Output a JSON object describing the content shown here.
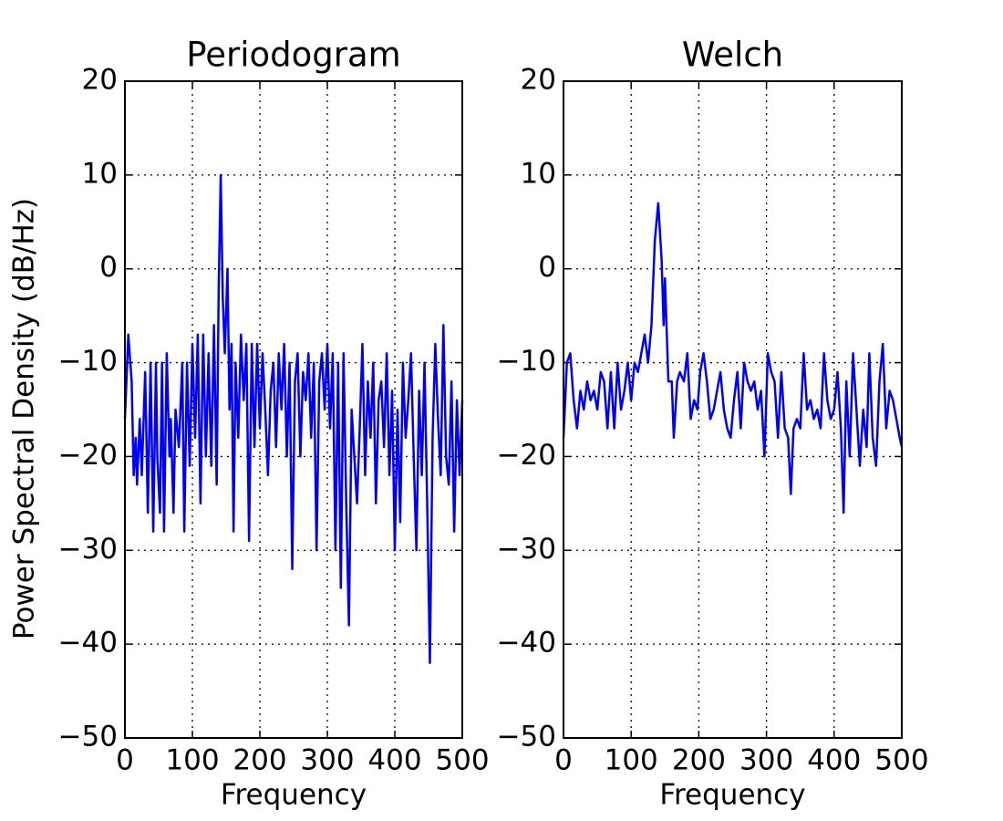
{
  "chart_data": [
    {
      "type": "line",
      "title": "Periodogram",
      "xlabel": "Frequency",
      "ylabel": "Power Spectral Density (dB/Hz)",
      "color": "#0000ff",
      "grid": true,
      "xlim": [
        0,
        500
      ],
      "ylim": [
        -50,
        20
      ],
      "xticks": [
        0,
        100,
        200,
        300,
        400,
        500
      ],
      "yticks": [
        {
          "value": -50,
          "label": "−50"
        },
        {
          "value": -40,
          "label": "−40"
        },
        {
          "value": -30,
          "label": "−30"
        },
        {
          "value": -20,
          "label": "−20"
        },
        {
          "value": -10,
          "label": "−10"
        },
        0,
        10,
        20
      ],
      "x": [
        0,
        5,
        10,
        13,
        16,
        18,
        22,
        25,
        30,
        34,
        38,
        42,
        46,
        48,
        52,
        55,
        58,
        62,
        66,
        68,
        72,
        75,
        80,
        85,
        88,
        92,
        96,
        100,
        104,
        108,
        112,
        116,
        120,
        124,
        128,
        132,
        136,
        139,
        142,
        145,
        148,
        152,
        155,
        158,
        161,
        164,
        168,
        172,
        176,
        180,
        184,
        188,
        192,
        196,
        200,
        204,
        208,
        212,
        216,
        220,
        224,
        228,
        232,
        236,
        240,
        244,
        248,
        252,
        256,
        260,
        264,
        268,
        272,
        276,
        280,
        284,
        288,
        292,
        296,
        300,
        304,
        308,
        312,
        316,
        320,
        324,
        328,
        332,
        336,
        340,
        344,
        348,
        352,
        356,
        360,
        364,
        368,
        372,
        376,
        380,
        384,
        388,
        392,
        396,
        400,
        404,
        408,
        412,
        416,
        420,
        424,
        428,
        432,
        436,
        440,
        444,
        448,
        452,
        456,
        460,
        464,
        468,
        472,
        476,
        480,
        484,
        488,
        492,
        496,
        500
      ],
      "values": [
        -16,
        -7,
        -12,
        -22,
        -18,
        -23,
        -16,
        -22,
        -11,
        -26,
        -10,
        -28,
        -10,
        -20,
        -26,
        -10,
        -28,
        -9,
        -20,
        -16,
        -26,
        -15,
        -19,
        -10,
        -28,
        -10,
        -21,
        -8,
        -18,
        -7,
        -25,
        -7,
        -20,
        -9,
        -21,
        -6,
        -23,
        -2,
        10,
        -3,
        -9,
        0,
        -15,
        -8,
        -28,
        -10,
        -18,
        -7,
        -14,
        -8,
        -29,
        -8,
        -19,
        -8,
        -17,
        -9,
        -15,
        -22,
        -13,
        -10,
        -19,
        -9,
        -15,
        -8,
        -20,
        -10,
        -32,
        -12,
        -9,
        -20,
        -11,
        -14,
        -9,
        -18,
        -10,
        -30,
        -12,
        -9,
        -15,
        -8,
        -17,
        -9,
        -30,
        -10,
        -34,
        -9,
        -25,
        -38,
        -15,
        -20,
        -25,
        -17,
        -8,
        -22,
        -12,
        -18,
        -10,
        -25,
        -14,
        -12,
        -19,
        -9,
        -22,
        -13,
        -30,
        -15,
        -27,
        -10,
        -18,
        -14,
        -9,
        -20,
        -30,
        -13,
        -22,
        -10,
        -25,
        -42,
        -18,
        -8,
        -16,
        -22,
        -6,
        -20,
        -23,
        -12,
        -28,
        -14,
        -22,
        -14
      ]
    },
    {
      "type": "line",
      "title": "Welch",
      "xlabel": "Frequency",
      "color": "#0000ff",
      "grid": true,
      "xlim": [
        0,
        500
      ],
      "ylim": [
        -50,
        20
      ],
      "xticks": [
        0,
        100,
        200,
        300,
        400,
        500
      ],
      "yticks": [
        {
          "value": -50,
          "label": "−50"
        },
        {
          "value": -40,
          "label": "−40"
        },
        {
          "value": -30,
          "label": "−30"
        },
        {
          "value": -20,
          "label": "−20"
        },
        {
          "value": -10,
          "label": "−10"
        },
        0,
        10,
        20
      ],
      "x": [
        0,
        5,
        10,
        15,
        20,
        25,
        30,
        35,
        40,
        45,
        50,
        55,
        60,
        65,
        70,
        75,
        80,
        85,
        90,
        95,
        100,
        105,
        110,
        115,
        120,
        125,
        130,
        135,
        140,
        145,
        148,
        150,
        155,
        160,
        163,
        168,
        172,
        178,
        183,
        188,
        193,
        198,
        202,
        207,
        212,
        217,
        222,
        227,
        232,
        237,
        242,
        247,
        252,
        257,
        262,
        267,
        272,
        277,
        282,
        287,
        292,
        297,
        302,
        307,
        312,
        317,
        322,
        327,
        332,
        336,
        340,
        345,
        350,
        355,
        360,
        365,
        370,
        375,
        380,
        385,
        390,
        395,
        400,
        405,
        410,
        414,
        418,
        423,
        428,
        433,
        438,
        443,
        448,
        452,
        457,
        462,
        467,
        472,
        477,
        482,
        487,
        492,
        497,
        500
      ],
      "values": [
        -18,
        -10,
        -9,
        -14,
        -17,
        -13,
        -15,
        -12,
        -14,
        -13,
        -15,
        -11,
        -12,
        -17,
        -11,
        -17,
        -10,
        -15,
        -13,
        -10,
        -14,
        -10,
        -11,
        -9,
        -7,
        -10,
        -6,
        3,
        7,
        1,
        -6,
        -1,
        -12,
        -12,
        -18,
        -12,
        -11,
        -12,
        -9,
        -16,
        -14,
        -15,
        -11,
        -9,
        -12,
        -16,
        -15,
        -13,
        -11,
        -15,
        -17,
        -18,
        -14,
        -11,
        -17,
        -10,
        -12,
        -13,
        -12,
        -15,
        -13,
        -20,
        -9,
        -11,
        -12,
        -18,
        -11,
        -17,
        -18,
        -24,
        -17,
        -16,
        -17,
        -9,
        -15,
        -14,
        -16,
        -15,
        -17,
        -9,
        -14,
        -16,
        -15,
        -11,
        -17,
        -26,
        -12,
        -20,
        -9,
        -15,
        -21,
        -15,
        -19,
        -9,
        -18,
        -21,
        -12,
        -8,
        -17,
        -13,
        -14,
        -16,
        -18,
        -19
      ]
    }
  ]
}
